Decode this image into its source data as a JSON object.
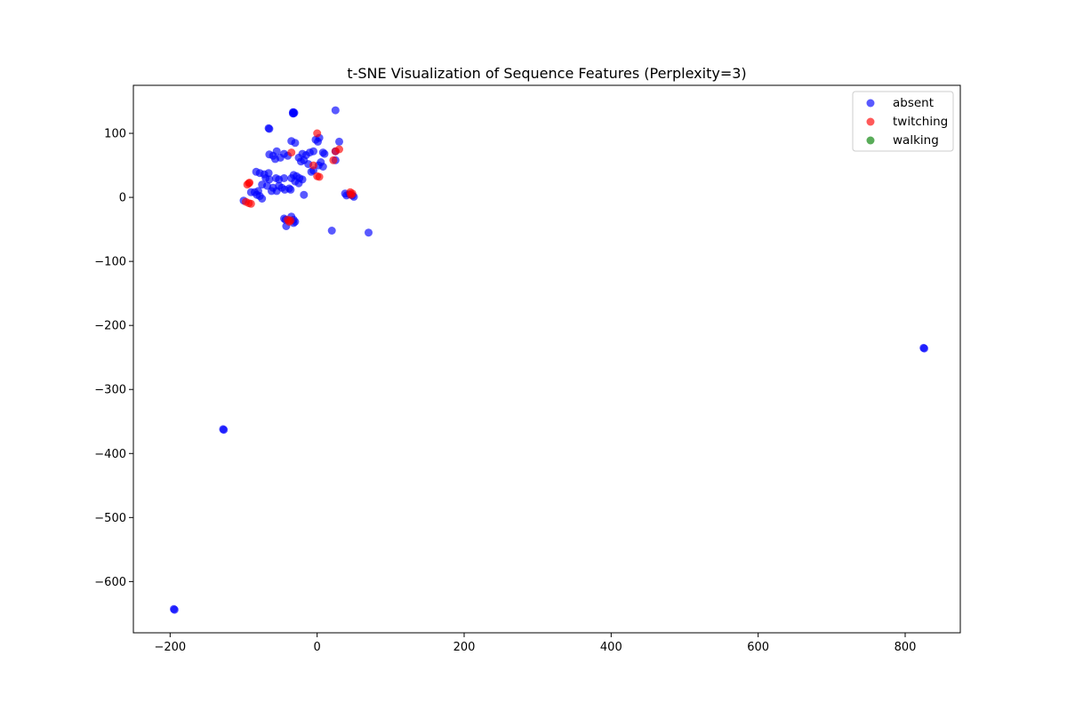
{
  "chart_data": {
    "type": "scatter",
    "title": "t-SNE Visualization of Sequence Features (Perplexity=3)",
    "xlabel": "",
    "ylabel": "",
    "xlim": [
      -250,
      875
    ],
    "ylim": [
      -680,
      175
    ],
    "xticks": [
      -200,
      0,
      200,
      400,
      600,
      800
    ],
    "yticks": [
      100,
      0,
      -100,
      -200,
      -300,
      -400,
      -500,
      -600
    ],
    "legend_position": "top-right",
    "grid": false,
    "series": [
      {
        "name": "absent",
        "color": "#0000ff",
        "points": [
          [
            -33,
            133
          ],
          [
            -32,
            133
          ],
          [
            -31,
            132
          ],
          [
            -33,
            131
          ],
          [
            -32,
            131
          ],
          [
            25,
            136
          ],
          [
            -66,
            108
          ],
          [
            -65,
            107
          ],
          [
            -35,
            88
          ],
          [
            -30,
            85
          ],
          [
            -2,
            90
          ],
          [
            1,
            87
          ],
          [
            3,
            93
          ],
          [
            30,
            87
          ],
          [
            -55,
            72
          ],
          [
            -45,
            68
          ],
          [
            -65,
            67
          ],
          [
            -60,
            65
          ],
          [
            -40,
            65
          ],
          [
            -20,
            68
          ],
          [
            -15,
            66
          ],
          [
            -10,
            70
          ],
          [
            -5,
            72
          ],
          [
            8,
            70
          ],
          [
            10,
            68
          ],
          [
            25,
            72
          ],
          [
            -25,
            62
          ],
          [
            -18,
            58
          ],
          [
            -22,
            56
          ],
          [
            5,
            55
          ],
          [
            -50,
            62
          ],
          [
            -57,
            60
          ],
          [
            -12,
            52
          ],
          [
            2,
            50
          ],
          [
            8,
            48
          ],
          [
            25,
            58
          ],
          [
            -8,
            40
          ],
          [
            -5,
            42
          ],
          [
            -83,
            40
          ],
          [
            -78,
            38
          ],
          [
            -72,
            36
          ],
          [
            -66,
            38
          ],
          [
            -70,
            30
          ],
          [
            -65,
            28
          ],
          [
            -56,
            30
          ],
          [
            -52,
            28
          ],
          [
            -45,
            30
          ],
          [
            -35,
            30
          ],
          [
            -32,
            35
          ],
          [
            -28,
            33
          ],
          [
            -24,
            30
          ],
          [
            -20,
            28
          ],
          [
            -30,
            25
          ],
          [
            -25,
            22
          ],
          [
            -75,
            20
          ],
          [
            -68,
            18
          ],
          [
            -60,
            15
          ],
          [
            -52,
            18
          ],
          [
            -48,
            15
          ],
          [
            -44,
            12
          ],
          [
            -38,
            14
          ],
          [
            -36,
            12
          ],
          [
            -55,
            10
          ],
          [
            -62,
            10
          ],
          [
            -80,
            10
          ],
          [
            -85,
            8
          ],
          [
            -90,
            8
          ],
          [
            -82,
            4
          ],
          [
            -78,
            2
          ],
          [
            -75,
            -2
          ],
          [
            -100,
            -5
          ],
          [
            -18,
            4
          ],
          [
            38,
            6
          ],
          [
            40,
            3
          ],
          [
            44,
            5
          ],
          [
            48,
            3
          ],
          [
            50,
            1
          ],
          [
            -45,
            -33
          ],
          [
            -43,
            -35
          ],
          [
            -35,
            -30
          ],
          [
            -32,
            -35
          ],
          [
            -30,
            -38
          ],
          [
            -42,
            -45
          ],
          [
            -32,
            -40
          ],
          [
            20,
            -52
          ],
          [
            70,
            -55
          ],
          [
            825,
            -235
          ],
          [
            826,
            -236
          ],
          [
            -128,
            -362
          ],
          [
            -127,
            -363
          ],
          [
            -195,
            -643
          ],
          [
            -194,
            -644
          ]
        ]
      },
      {
        "name": "twitching",
        "color": "#ff0000",
        "points": [
          [
            0,
            100
          ],
          [
            25,
            72
          ],
          [
            30,
            75
          ],
          [
            -35,
            70
          ],
          [
            -5,
            50
          ],
          [
            0,
            33
          ],
          [
            3,
            32
          ],
          [
            22,
            58
          ],
          [
            -93,
            22
          ],
          [
            -95,
            20
          ],
          [
            -92,
            23
          ],
          [
            45,
            8
          ],
          [
            48,
            6
          ],
          [
            46,
            4
          ],
          [
            -38,
            -38
          ],
          [
            -36,
            -36
          ],
          [
            -40,
            -35
          ],
          [
            -97,
            -7
          ],
          [
            -93,
            -9
          ],
          [
            -90,
            -10
          ]
        ]
      },
      {
        "name": "walking",
        "color": "#008000",
        "points": []
      }
    ]
  }
}
